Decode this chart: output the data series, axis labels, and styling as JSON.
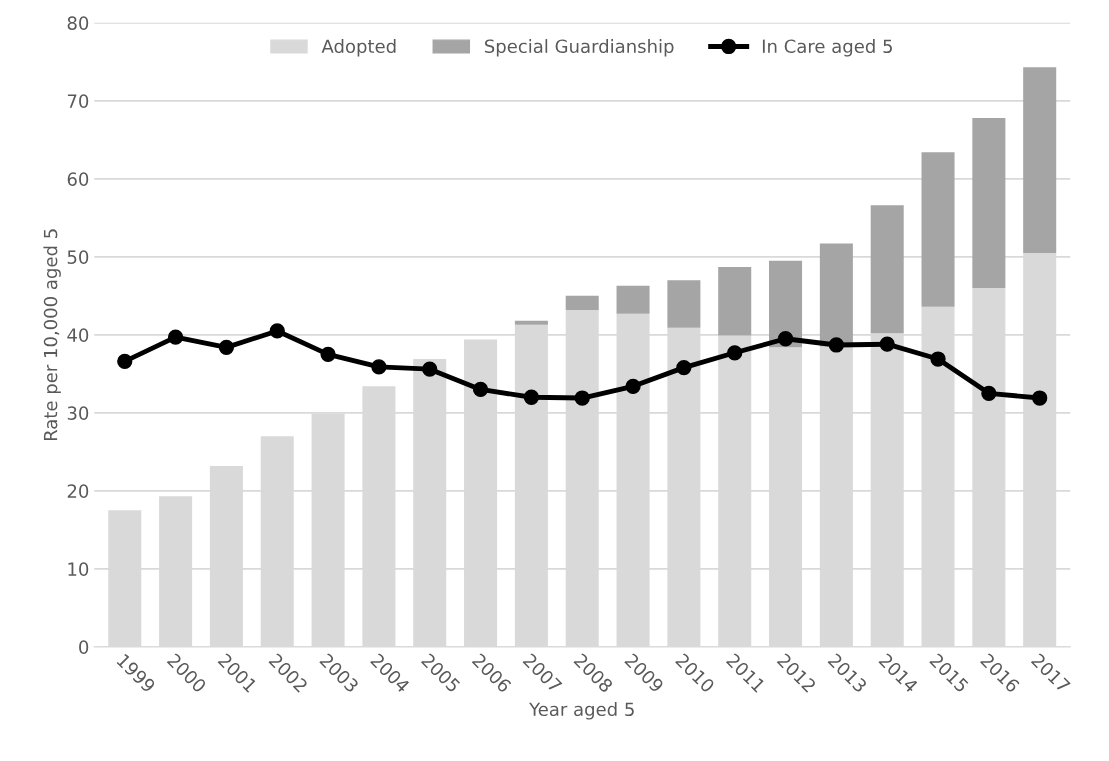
{
  "chart_data": {
    "type": "bar",
    "stacked": true,
    "xlabel": "Year aged 5",
    "ylabel": "Rate per 10,000 aged 5",
    "categories": [
      "1999",
      "2000",
      "2001",
      "2002",
      "2003",
      "2004",
      "2005",
      "2006",
      "2007",
      "2008",
      "2009",
      "2010",
      "2011",
      "2012",
      "2013",
      "2014",
      "2015",
      "2016",
      "2017"
    ],
    "series": [
      {
        "name": "Adopted",
        "color": "#d9d9d9",
        "values": [
          17.5,
          19.3,
          23.2,
          27.0,
          29.9,
          33.4,
          36.9,
          39.4,
          41.3,
          43.2,
          42.7,
          40.9,
          39.9,
          38.4,
          38.5,
          40.2,
          43.6,
          46.0,
          50.5
        ]
      },
      {
        "name": "Special Guardianship",
        "color": "#a5a5a5",
        "values": [
          null,
          null,
          null,
          null,
          null,
          null,
          null,
          null,
          0.5,
          1.8,
          3.6,
          6.1,
          8.8,
          11.1,
          13.2,
          16.4,
          19.8,
          21.8,
          23.8
        ]
      },
      {
        "name": "In Care aged 5",
        "type": "line",
        "color": "#000000",
        "marker": "circle",
        "values": [
          36.6,
          39.7,
          38.4,
          40.5,
          37.5,
          35.9,
          35.6,
          33.0,
          32.0,
          31.9,
          33.4,
          35.8,
          37.7,
          39.5,
          38.7,
          38.8,
          36.9,
          32.5,
          31.9
        ]
      }
    ],
    "ylim": [
      0,
      80
    ],
    "yticks": [
      0,
      10,
      20,
      30,
      40,
      50,
      60,
      70,
      80
    ],
    "grid": "y",
    "legend": "top"
  }
}
